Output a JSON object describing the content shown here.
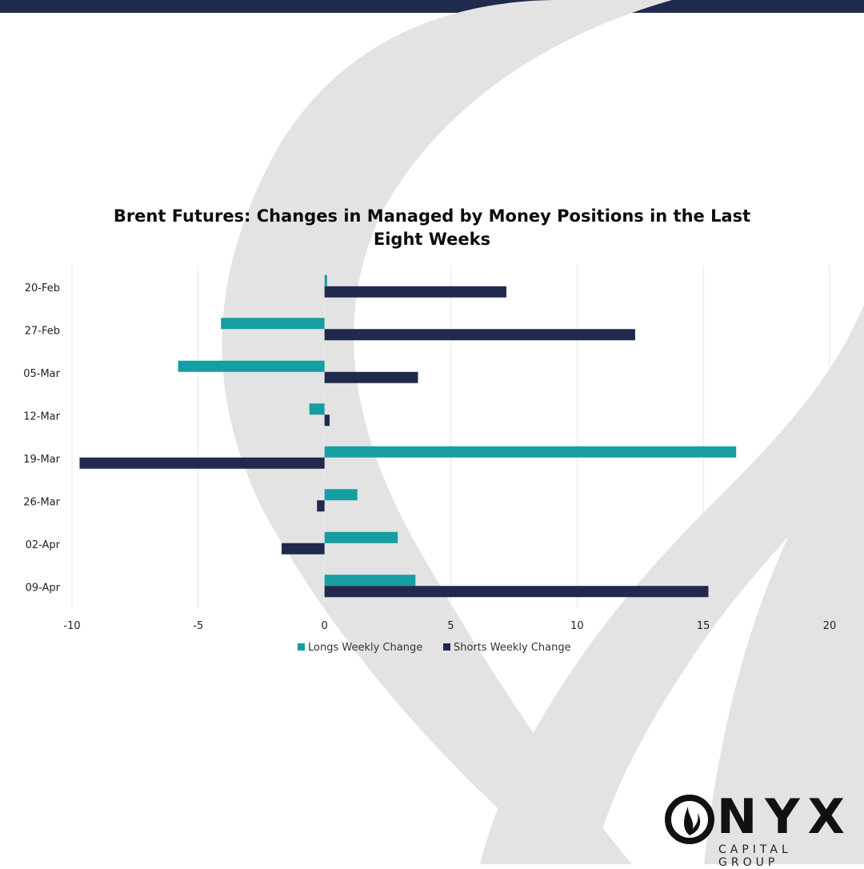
{
  "colors": {
    "longs": "#169ea3",
    "shorts": "#1f2a4d",
    "header_bar": "#1f2a4d",
    "watermark": "#e3e3e3",
    "grid": "#e6e6e6"
  },
  "chart_data": {
    "type": "bar",
    "orientation": "horizontal",
    "title": "Brent Futures: Changes in Managed by Money Positions in the Last Eight Weeks",
    "categories": [
      "20-Feb",
      "27-Feb",
      "05-Mar",
      "12-Mar",
      "19-Mar",
      "26-Mar",
      "02-Apr",
      "09-Apr"
    ],
    "series": [
      {
        "name": "Longs Weekly Change",
        "values": [
          0.1,
          -4.1,
          -5.8,
          -0.6,
          16.3,
          1.3,
          2.9,
          3.6
        ]
      },
      {
        "name": "Shorts Weekly Change",
        "values": [
          7.2,
          12.3,
          3.7,
          0.2,
          -9.7,
          -0.3,
          -1.7,
          15.2
        ]
      }
    ],
    "xlim": [
      -10,
      20
    ],
    "xticks": [
      "-10",
      "-5",
      "0",
      "5",
      "10",
      "15",
      "20"
    ],
    "grid": "vertical",
    "legend": "bottom"
  },
  "logo": {
    "wordmark": "NYX",
    "tagline": "CAPITAL GROUP",
    "icon": "flame-icon"
  }
}
